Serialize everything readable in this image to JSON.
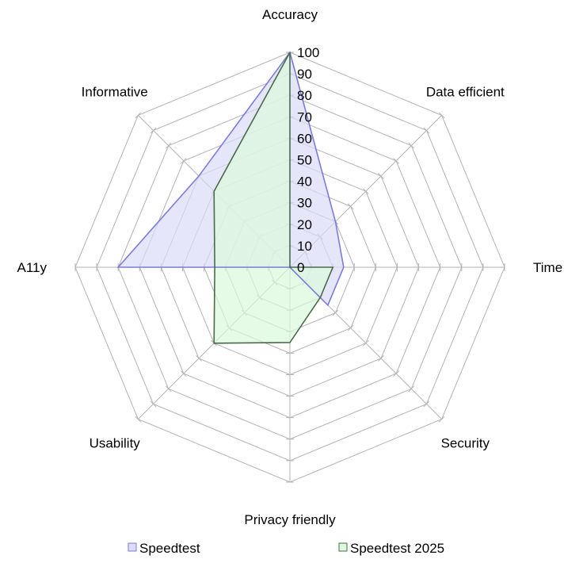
{
  "chart_data": {
    "type": "radar",
    "categories": [
      "Accuracy",
      "Data efficient",
      "Time",
      "Security",
      "Privacy friendly",
      "Usability",
      "A11y",
      "Informative"
    ],
    "rlim": [
      0,
      100
    ],
    "ticks": [
      0,
      10,
      20,
      30,
      40,
      50,
      60,
      70,
      80,
      90,
      100
    ],
    "grid": true,
    "legend_position": "bottom",
    "series": [
      {
        "name": "Speedtest",
        "values": [
          100,
          30,
          25,
          25,
          0,
          0,
          80,
          60
        ],
        "fill": "#dcdcfa",
        "stroke": "#7b7bd9"
      },
      {
        "name": "Speedtest 2025",
        "values": [
          100,
          0,
          20,
          20,
          35,
          50,
          35,
          50
        ],
        "fill": "#dcfadc",
        "stroke": "#4a6b4a"
      }
    ],
    "overlap_fill": "#c8dcdc"
  }
}
